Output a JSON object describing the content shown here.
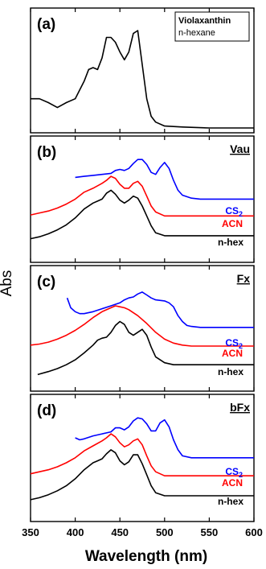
{
  "figure": {
    "ylabel": "Abs",
    "xlabel": "Wavelength (nm)"
  },
  "chart_data": [
    {
      "type": "line",
      "panel_label": "(a)",
      "legend_box": [
        "Violaxanthin",
        "n-hexane"
      ],
      "xlim": [
        350,
        600
      ],
      "series": [
        {
          "color": "#000000",
          "x": [
            350,
            360,
            370,
            380,
            390,
            400,
            410,
            415,
            420,
            425,
            430,
            435,
            440,
            445,
            450,
            455,
            460,
            465,
            470,
            475,
            480,
            485,
            490,
            500,
            520,
            550,
            600
          ],
          "y": [
            0.3,
            0.3,
            0.26,
            0.21,
            0.26,
            0.3,
            0.48,
            0.6,
            0.62,
            0.6,
            0.72,
            0.93,
            0.93,
            0.88,
            0.78,
            0.7,
            0.78,
            0.97,
            1.0,
            0.65,
            0.3,
            0.12,
            0.06,
            0.02,
            0.01,
            0.0,
            0.0
          ]
        }
      ]
    },
    {
      "type": "line",
      "panel_label": "(b)",
      "tag": "Vau",
      "xlim": [
        350,
        600
      ],
      "series": [
        {
          "name": "CS",
          "sub": "2",
          "color": "#0000ff",
          "x": [
            400,
            410,
            420,
            430,
            440,
            445,
            450,
            455,
            460,
            465,
            470,
            475,
            480,
            485,
            490,
            495,
            500,
            505,
            510,
            515,
            520,
            530,
            540,
            550,
            560,
            575,
            590,
            600
          ],
          "y": [
            0.81,
            0.82,
            0.83,
            0.84,
            0.85,
            0.88,
            0.89,
            0.88,
            0.9,
            0.95,
            0.99,
            0.99,
            0.94,
            0.86,
            0.84,
            0.91,
            0.96,
            0.9,
            0.78,
            0.68,
            0.63,
            0.6,
            0.59,
            0.59,
            0.59,
            0.59,
            0.59,
            0.59
          ]
        },
        {
          "name": "ACN",
          "color": "#ff0000",
          "x": [
            350,
            360,
            370,
            380,
            390,
            400,
            410,
            420,
            430,
            435,
            440,
            445,
            450,
            455,
            460,
            465,
            470,
            475,
            480,
            485,
            490,
            500,
            510,
            520,
            540,
            560,
            580,
            600
          ],
          "y": [
            0.43,
            0.45,
            0.47,
            0.5,
            0.54,
            0.59,
            0.66,
            0.7,
            0.75,
            0.78,
            0.82,
            0.8,
            0.74,
            0.7,
            0.7,
            0.75,
            0.77,
            0.72,
            0.62,
            0.52,
            0.46,
            0.42,
            0.42,
            0.42,
            0.42,
            0.42,
            0.42,
            0.42
          ]
        },
        {
          "name": "n-hex",
          "color": "#000000",
          "x": [
            350,
            360,
            370,
            380,
            390,
            400,
            410,
            420,
            425,
            430,
            435,
            440,
            445,
            450,
            455,
            460,
            465,
            470,
            475,
            480,
            485,
            490,
            500,
            510,
            520,
            540,
            560,
            580,
            600
          ],
          "y": [
            0.19,
            0.21,
            0.24,
            0.28,
            0.33,
            0.4,
            0.49,
            0.55,
            0.57,
            0.59,
            0.65,
            0.68,
            0.64,
            0.58,
            0.55,
            0.58,
            0.62,
            0.6,
            0.52,
            0.42,
            0.32,
            0.25,
            0.22,
            0.22,
            0.22,
            0.22,
            0.22,
            0.22,
            0.22
          ]
        }
      ]
    },
    {
      "type": "line",
      "panel_label": "(c)",
      "tag": "Fx",
      "xlim": [
        350,
        600
      ],
      "series": [
        {
          "name": "CS",
          "sub": "2",
          "color": "#0000ff",
          "x": [
            391,
            395,
            400,
            405,
            410,
            420,
            430,
            440,
            450,
            455,
            460,
            465,
            470,
            475,
            480,
            485,
            490,
            500,
            505,
            510,
            515,
            520,
            525,
            530,
            540,
            550,
            575,
            600
          ],
          "y": [
            0.9,
            0.8,
            0.76,
            0.74,
            0.74,
            0.76,
            0.79,
            0.82,
            0.85,
            0.88,
            0.9,
            0.91,
            0.94,
            0.96,
            0.93,
            0.9,
            0.88,
            0.87,
            0.85,
            0.81,
            0.72,
            0.66,
            0.62,
            0.61,
            0.6,
            0.6,
            0.6,
            0.6
          ]
        },
        {
          "name": "ACN",
          "color": "#ff0000",
          "x": [
            350,
            360,
            370,
            380,
            390,
            400,
            410,
            420,
            430,
            440,
            445,
            450,
            455,
            460,
            470,
            480,
            490,
            500,
            510,
            520,
            530,
            540,
            560,
            580,
            600
          ],
          "y": [
            0.42,
            0.43,
            0.45,
            0.48,
            0.52,
            0.57,
            0.63,
            0.7,
            0.76,
            0.8,
            0.82,
            0.81,
            0.8,
            0.78,
            0.72,
            0.64,
            0.55,
            0.48,
            0.44,
            0.42,
            0.41,
            0.41,
            0.41,
            0.41,
            0.41
          ]
        },
        {
          "name": "n-hex",
          "color": "#000000",
          "x": [
            358,
            370,
            380,
            390,
            400,
            410,
            420,
            425,
            430,
            435,
            440,
            445,
            450,
            455,
            460,
            465,
            470,
            475,
            480,
            485,
            490,
            500,
            510,
            520,
            540,
            560,
            580,
            600
          ],
          "y": [
            0.12,
            0.15,
            0.18,
            0.22,
            0.27,
            0.34,
            0.42,
            0.47,
            0.49,
            0.5,
            0.55,
            0.62,
            0.66,
            0.63,
            0.55,
            0.52,
            0.55,
            0.58,
            0.52,
            0.4,
            0.3,
            0.24,
            0.22,
            0.22,
            0.22,
            0.22,
            0.22,
            0.22
          ]
        }
      ]
    },
    {
      "type": "line",
      "panel_label": "(d)",
      "tag": "bFx",
      "xlim": [
        350,
        600
      ],
      "series": [
        {
          "name": "CS",
          "sub": "2",
          "color": "#0000ff",
          "x": [
            400,
            405,
            410,
            420,
            430,
            440,
            445,
            450,
            455,
            460,
            465,
            470,
            475,
            480,
            485,
            490,
            495,
            500,
            505,
            510,
            515,
            520,
            530,
            540,
            550,
            575,
            600
          ],
          "y": [
            0.79,
            0.77,
            0.78,
            0.81,
            0.83,
            0.85,
            0.89,
            0.89,
            0.87,
            0.9,
            0.96,
            0.99,
            0.98,
            0.93,
            0.86,
            0.86,
            0.94,
            0.97,
            0.9,
            0.77,
            0.67,
            0.61,
            0.59,
            0.59,
            0.59,
            0.59,
            0.59
          ]
        },
        {
          "name": "ACN",
          "color": "#ff0000",
          "x": [
            350,
            360,
            370,
            380,
            390,
            400,
            410,
            420,
            430,
            435,
            440,
            445,
            450,
            455,
            460,
            465,
            470,
            475,
            480,
            485,
            490,
            500,
            510,
            520,
            540,
            560,
            580,
            600
          ],
          "y": [
            0.43,
            0.45,
            0.47,
            0.5,
            0.54,
            0.59,
            0.66,
            0.71,
            0.76,
            0.79,
            0.83,
            0.8,
            0.74,
            0.7,
            0.72,
            0.76,
            0.78,
            0.72,
            0.61,
            0.51,
            0.45,
            0.41,
            0.41,
            0.41,
            0.41,
            0.41,
            0.41,
            0.41
          ]
        },
        {
          "name": "n-hex",
          "color": "#000000",
          "x": [
            350,
            360,
            370,
            380,
            390,
            400,
            410,
            420,
            425,
            430,
            435,
            440,
            445,
            450,
            455,
            460,
            465,
            470,
            475,
            480,
            485,
            490,
            500,
            510,
            520,
            540,
            560,
            580,
            600
          ],
          "y": [
            0.17,
            0.19,
            0.22,
            0.26,
            0.31,
            0.38,
            0.47,
            0.54,
            0.56,
            0.58,
            0.63,
            0.67,
            0.64,
            0.56,
            0.52,
            0.55,
            0.62,
            0.62,
            0.53,
            0.42,
            0.31,
            0.24,
            0.21,
            0.21,
            0.21,
            0.21,
            0.21,
            0.21,
            0.21
          ]
        }
      ]
    }
  ],
  "x_axis": {
    "ticks": [
      350,
      400,
      450,
      500,
      550,
      600
    ],
    "tick_labels": [
      "350",
      "400",
      "450",
      "500",
      "550",
      "600"
    ]
  }
}
